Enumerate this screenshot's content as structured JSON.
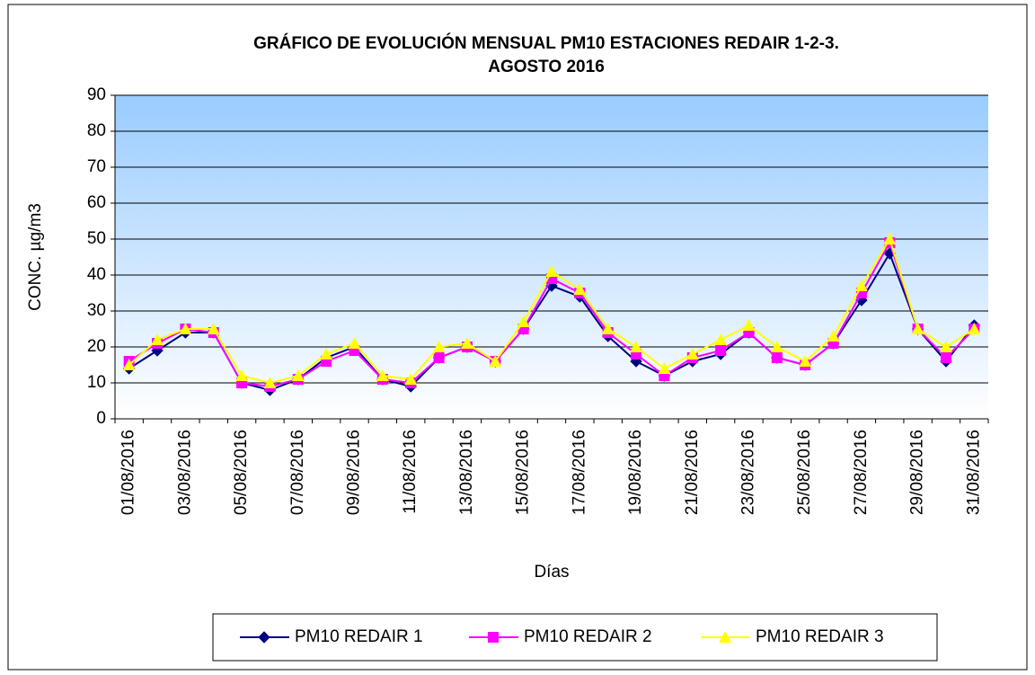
{
  "chart_data": {
    "type": "line",
    "title_lines": [
      "GRÁFICO DE EVOLUCIÓN MENSUAL PM10 ESTACIONES REDAIR 1-2-3.",
      "AGOSTO 2016"
    ],
    "x_label": "Días",
    "y_label": "CONC.  µg/m3",
    "categories": [
      "01/08/2016",
      null,
      "03/08/2016",
      null,
      "05/08/2016",
      null,
      "07/08/2016",
      null,
      "09/08/2016",
      null,
      "11/08/2016",
      null,
      "13/08/2016",
      null,
      "15/08/2016",
      null,
      "17/08/2016",
      null,
      "19/08/2016",
      null,
      "21/08/2016",
      null,
      "23/08/2016",
      null,
      "25/08/2016",
      null,
      "27/08/2016",
      null,
      "29/08/2016",
      null,
      "31/08/2016"
    ],
    "series": [
      {
        "name": "PM10 REDAIR 1",
        "color": "#000080",
        "marker": "diamond",
        "values": [
          14,
          19,
          24,
          24,
          10,
          8,
          11,
          17,
          20,
          11,
          9,
          17,
          20,
          16,
          25,
          37,
          34,
          23,
          16,
          12,
          16,
          18,
          24,
          17,
          15,
          21,
          33,
          46,
          25,
          16,
          26
        ]
      },
      {
        "name": "PM10 REDAIR 2",
        "color": "#ff00ff",
        "marker": "square",
        "values": [
          16,
          21,
          25,
          24,
          10,
          9,
          11,
          16,
          19,
          11,
          10,
          17,
          20,
          16,
          25,
          39,
          35,
          24,
          18,
          12,
          17,
          19,
          24,
          17,
          15,
          21,
          35,
          49,
          25,
          17,
          25
        ]
      },
      {
        "name": "PM10 REDAIR 3",
        "color": "#ffff00",
        "marker": "triangle",
        "values": [
          15,
          22,
          25,
          25,
          12,
          10,
          12,
          18,
          21,
          12,
          11,
          20,
          21,
          16,
          27,
          41,
          36,
          25,
          20,
          14,
          18,
          22,
          26,
          20,
          16,
          23,
          37,
          50,
          25,
          20,
          25
        ]
      }
    ],
    "ylim": [
      0,
      90
    ],
    "yticks": [
      0,
      10,
      20,
      30,
      40,
      50,
      60,
      70,
      80,
      90
    ],
    "grid": true,
    "legend": "bottom"
  }
}
